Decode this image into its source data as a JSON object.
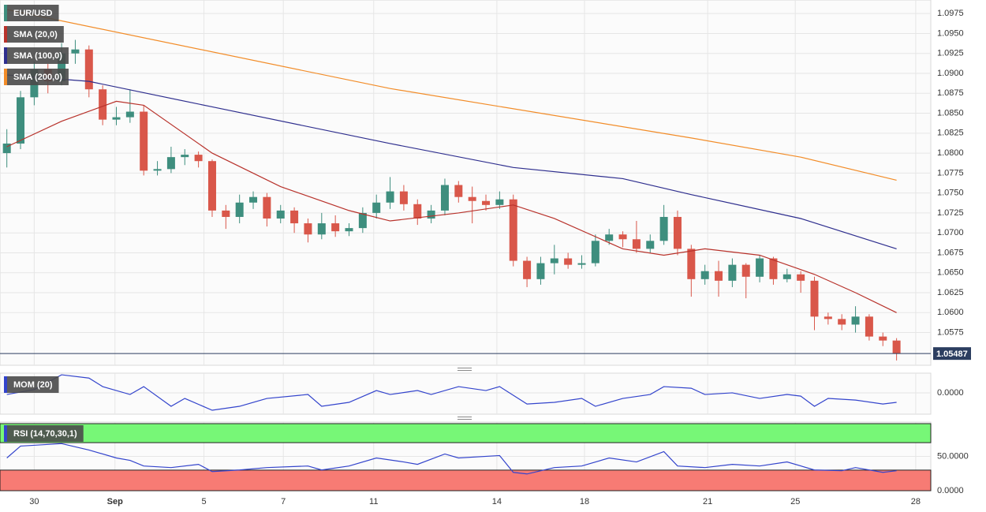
{
  "chart_data": [
    {
      "type": "candlestick",
      "name": "EUR/USD",
      "name_color": "#3e8e7e",
      "up_color": "#3e8e7e",
      "down_color": "#d9574a",
      "open": [
        1.08,
        1.0812,
        1.087,
        1.0905,
        1.089,
        1.0925,
        1.093,
        1.088,
        1.0842,
        1.0845,
        1.0852,
        1.0778,
        1.078,
        1.0795,
        1.0798,
        1.079,
        1.0728,
        1.072,
        1.0738,
        1.0745,
        1.0718,
        1.0728,
        1.0712,
        1.0698,
        1.0712,
        1.0702,
        1.0706,
        1.0725,
        1.0738,
        1.0752,
        1.0736,
        1.0718,
        1.0728,
        1.076,
        1.0745,
        1.074,
        1.0735,
        1.0742,
        1.0665,
        1.0642,
        1.0662,
        1.0668,
        1.066,
        1.0662,
        1.069,
        1.0698,
        1.0692,
        1.068,
        1.069,
        1.072,
        1.068,
        1.0642,
        1.0652,
        1.064,
        1.066,
        1.0645,
        1.0668,
        1.0642,
        1.0648,
        1.064,
        1.0595,
        1.0592,
        1.0585,
        1.0595,
        1.057,
        1.0565
      ],
      "high": [
        1.083,
        1.0878,
        1.0915,
        1.0912,
        1.0938,
        1.0942,
        1.0935,
        1.0885,
        1.0858,
        1.088,
        1.086,
        1.079,
        1.0808,
        1.0805,
        1.0802,
        1.0792,
        1.0735,
        1.0748,
        1.0752,
        1.075,
        1.0735,
        1.0732,
        1.0718,
        1.0725,
        1.0722,
        1.0712,
        1.0732,
        1.0748,
        1.077,
        1.076,
        1.0742,
        1.0735,
        1.0768,
        1.0765,
        1.0758,
        1.0748,
        1.0752,
        1.0748,
        1.067,
        1.067,
        1.0685,
        1.0675,
        1.0672,
        1.0698,
        1.0705,
        1.0702,
        1.0715,
        1.0698,
        1.0735,
        1.0728,
        1.0685,
        1.066,
        1.0665,
        1.0668,
        1.0662,
        1.0672,
        1.067,
        1.0655,
        1.0652,
        1.0645,
        1.06,
        1.0598,
        1.0608,
        1.0598,
        1.0575,
        1.0568
      ],
      "low": [
        1.0782,
        1.0805,
        1.086,
        1.0875,
        1.0885,
        1.0912,
        1.087,
        1.0835,
        1.0835,
        1.0838,
        1.0772,
        1.0772,
        1.0775,
        1.0785,
        1.0782,
        1.072,
        1.0705,
        1.0712,
        1.073,
        1.0708,
        1.0712,
        1.07,
        1.0688,
        1.0692,
        1.0695,
        1.0696,
        1.07,
        1.0718,
        1.073,
        1.0728,
        1.071,
        1.0712,
        1.0722,
        1.0738,
        1.0712,
        1.0728,
        1.073,
        1.0658,
        1.0632,
        1.0635,
        1.0648,
        1.0655,
        1.0655,
        1.0658,
        1.0685,
        1.0682,
        1.0675,
        1.0675,
        1.0685,
        1.0672,
        1.062,
        1.0635,
        1.062,
        1.0632,
        1.0618,
        1.0638,
        1.0635,
        1.0638,
        1.0625,
        1.0578,
        1.0585,
        1.0578,
        1.0575,
        1.0565,
        1.0558,
        1.054
      ],
      "close": [
        1.0812,
        1.087,
        1.0905,
        1.089,
        1.0925,
        1.093,
        1.088,
        1.0842,
        1.0845,
        1.0852,
        1.0778,
        1.078,
        1.0795,
        1.0798,
        1.079,
        1.0728,
        1.072,
        1.0738,
        1.0745,
        1.0718,
        1.0728,
        1.0712,
        1.0698,
        1.0712,
        1.0702,
        1.0706,
        1.0725,
        1.0738,
        1.0752,
        1.0736,
        1.0718,
        1.0728,
        1.076,
        1.0745,
        1.074,
        1.0735,
        1.0742,
        1.0665,
        1.0642,
        1.0662,
        1.0668,
        1.066,
        1.0662,
        1.069,
        1.0698,
        1.0692,
        1.068,
        1.069,
        1.072,
        1.068,
        1.0642,
        1.0652,
        1.064,
        1.066,
        1.0645,
        1.0668,
        1.0642,
        1.0648,
        1.064,
        1.0595,
        1.0592,
        1.0585,
        1.0595,
        1.057,
        1.0565,
        1.05487
      ],
      "series": [
        {
          "name": "SMA (20,0)",
          "color": "#b8322b",
          "x": [
            0,
            4,
            8,
            10,
            15,
            20,
            25,
            28,
            33,
            37,
            40,
            45,
            48,
            51,
            55,
            59,
            62,
            65
          ],
          "values": [
            1.0808,
            1.084,
            1.0865,
            1.086,
            1.08,
            1.0758,
            1.0728,
            1.0715,
            1.0725,
            1.0735,
            1.0718,
            1.068,
            1.0672,
            1.068,
            1.0672,
            1.0648,
            1.0625,
            1.06
          ]
        },
        {
          "name": "SMA (100,0)",
          "color": "#2e2e8e",
          "x": [
            0,
            6,
            15,
            28,
            37,
            45,
            50,
            58,
            65
          ],
          "values": [
            1.0898,
            1.089,
            1.0858,
            1.0812,
            1.0782,
            1.0768,
            1.0748,
            1.0718,
            1.068
          ]
        },
        {
          "name": "SMA (200,0)",
          "color": "#f28c28",
          "x": [
            0,
            28,
            50,
            58,
            65
          ],
          "values": [
            1.098,
            1.0881,
            1.0819,
            1.0795,
            1.0766
          ]
        }
      ],
      "price_line": 1.05487,
      "price_line_color": "#2c3e60",
      "xlim": [
        -0.5,
        67.5
      ],
      "ylim": [
        1.0534,
        1.0992
      ],
      "yticks": [
        {
          "value": 1.0575,
          "label": "1.0575"
        },
        {
          "value": 1.06,
          "label": "1.0600"
        },
        {
          "value": 1.0625,
          "label": "1.0625"
        },
        {
          "value": 1.065,
          "label": "1.0650"
        },
        {
          "value": 1.0675,
          "label": "1.0675"
        },
        {
          "value": 1.07,
          "label": "1.0700"
        },
        {
          "value": 1.0725,
          "label": "1.0725"
        },
        {
          "value": 1.075,
          "label": "1.0750"
        },
        {
          "value": 1.0775,
          "label": "1.0775"
        },
        {
          "value": 1.08,
          "label": "1.0800"
        },
        {
          "value": 1.0825,
          "label": "1.0825"
        },
        {
          "value": 1.085,
          "label": "1.0850"
        },
        {
          "value": 1.0875,
          "label": "1.0875"
        },
        {
          "value": 1.09,
          "label": "1.0900"
        },
        {
          "value": 1.0925,
          "label": "1.0925"
        },
        {
          "value": 1.095,
          "label": "1.0950"
        },
        {
          "value": 1.0975,
          "label": "1.0975"
        }
      ],
      "grid": true
    },
    {
      "type": "line",
      "series": [
        {
          "name": "MOM (20)",
          "color": "#3344cc",
          "x": [
            0,
            2,
            4,
            6,
            7,
            9,
            10,
            12,
            13,
            15,
            17,
            19,
            22,
            23,
            25,
            27,
            28,
            30,
            31,
            33,
            35,
            36,
            38,
            40,
            42,
            43,
            45,
            47,
            48,
            50,
            51,
            53,
            55,
            57,
            58,
            59,
            60,
            62,
            64,
            65
          ],
          "values": [
            -0.0005,
            0.001,
            0.0055,
            0.0045,
            0.0019,
            -0.0005,
            0.0019,
            -0.0041,
            -0.0017,
            -0.0053,
            -0.0041,
            -0.0017,
            -0.0005,
            -0.0041,
            -0.0029,
            0.0007,
            -0.0005,
            0.0007,
            -0.0005,
            0.0019,
            0.0007,
            0.0019,
            -0.0034,
            -0.0029,
            -0.0017,
            -0.0041,
            -0.0017,
            -0.0005,
            0.0019,
            0.0014,
            -0.0005,
            0,
            -0.0017,
            -0.0005,
            -0.001,
            -0.0041,
            -0.0017,
            -0.0022,
            -0.0034,
            -0.0029
          ]
        }
      ],
      "xlim": [
        -0.5,
        67.5
      ],
      "ylim": [
        -0.0065,
        0.006
      ],
      "yticks": [
        {
          "value": 0,
          "label": "0.0000"
        }
      ],
      "grid": true
    },
    {
      "type": "line",
      "series": [
        {
          "name": "RSI (14,70,30,1)",
          "color": "#3344cc",
          "x": [
            0,
            1,
            4,
            6,
            8,
            9,
            10,
            12,
            14,
            15,
            17,
            19,
            22,
            23,
            25,
            27,
            29,
            30,
            32,
            33,
            36,
            37,
            38,
            40,
            42,
            44,
            46,
            48,
            49,
            51,
            53,
            55,
            57,
            59,
            61,
            62,
            64,
            65
          ],
          "values": [
            47.7,
            65,
            68.6,
            59.3,
            47.7,
            44.2,
            36,
            33.7,
            38.4,
            27.9,
            30.2,
            33.7,
            36,
            30.2,
            36,
            47.7,
            41.9,
            38.4,
            53.5,
            47.7,
            51.2,
            26.7,
            24.4,
            33.7,
            36,
            47.7,
            41.9,
            57,
            36,
            33.7,
            38.4,
            36,
            41.9,
            30.2,
            29.1,
            33.7,
            26.7,
            29.1
          ]
        }
      ],
      "upper_band": 70,
      "lower_band": 30,
      "upper_color": "#77f777",
      "lower_color": "#f77b74",
      "xlim": [
        -0.5,
        67.5
      ],
      "ylim": [
        0,
        100
      ],
      "yticks": [
        {
          "value": 0,
          "label": "0.0000"
        },
        {
          "value": 50,
          "label": "50.0000"
        }
      ],
      "xticks": [
        {
          "value": 2,
          "label": "30"
        },
        {
          "value": 7.9,
          "label": "Sep"
        },
        {
          "value": 14.4,
          "label": "5"
        },
        {
          "value": 20.2,
          "label": "7"
        },
        {
          "value": 26.8,
          "label": "11"
        },
        {
          "value": 35.8,
          "label": "14"
        },
        {
          "value": 42.2,
          "label": "18"
        },
        {
          "value": 51.2,
          "label": "21"
        },
        {
          "value": 57.6,
          "label": "25"
        },
        {
          "value": 66.4,
          "label": "28"
        }
      ],
      "grid": true
    }
  ]
}
